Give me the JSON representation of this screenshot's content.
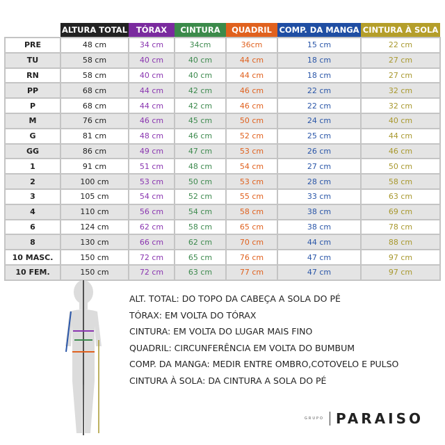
{
  "columns": [
    {
      "label": "ALTURA TOTAL",
      "color": "#222222",
      "text": "#222222"
    },
    {
      "label": "TÓRAX",
      "color": "#7a2a9e",
      "text": "#8a35b0"
    },
    {
      "label": "CINTURA",
      "color": "#3b8a4a",
      "text": "#3d8a4e"
    },
    {
      "label": "QUADRIL",
      "color": "#e0611e",
      "text": "#e0611e"
    },
    {
      "label": "COMP. DA MANGA",
      "color": "#1f4ea3",
      "text": "#2a56a8"
    },
    {
      "label": "CINTURA À SOLA",
      "color": "#b49e2a",
      "text": "#a8982e"
    }
  ],
  "rows": [
    [
      "PRE",
      "48 cm",
      "34 cm",
      "34cm",
      "36cm",
      "15 cm",
      "22 cm"
    ],
    [
      "TU",
      "58 cm",
      "40 cm",
      "40 cm",
      "44 cm",
      "18 cm",
      "27 cm"
    ],
    [
      "RN",
      "58 cm",
      "40 cm",
      "40 cm",
      "44 cm",
      "18 cm",
      "27 cm"
    ],
    [
      "PP",
      "68 cm",
      "44 cm",
      "42 cm",
      "46 cm",
      "22 cm",
      "32 cm"
    ],
    [
      "P",
      "68 cm",
      "44 cm",
      "42 cm",
      "46 cm",
      "22 cm",
      "32 cm"
    ],
    [
      "M",
      "76 cm",
      "46 cm",
      "45 cm",
      "50 cm",
      "24 cm",
      "40 cm"
    ],
    [
      "G",
      "81 cm",
      "48 cm",
      "46 cm",
      "52 cm",
      "25 cm",
      "44 cm"
    ],
    [
      "GG",
      "86 cm",
      "49 cm",
      "47 cm",
      "53 cm",
      "26 cm",
      "46 cm"
    ],
    [
      "1",
      "91 cm",
      "51 cm",
      "48 cm",
      "54 cm",
      "27 cm",
      "50 cm"
    ],
    [
      "2",
      "100 cm",
      "53 cm",
      "50 cm",
      "53 cm",
      "28 cm",
      "58 cm"
    ],
    [
      "3",
      "105 cm",
      "54 cm",
      "52 cm",
      "55 cm",
      "33 cm",
      "63 cm"
    ],
    [
      "4",
      "110 cm",
      "56 cm",
      "54 cm",
      "58 cm",
      "38 cm",
      "69 cm"
    ],
    [
      "6",
      "124 cm",
      "62 cm",
      "58 cm",
      "65 cm",
      "38 cm",
      "78 cm"
    ],
    [
      "8",
      "130 cm",
      "66 cm",
      "62 cm",
      "70 cm",
      "44 cm",
      "88 cm"
    ],
    [
      "10 MASC.",
      "150 cm",
      "72 cm",
      "65 cm",
      "76 cm",
      "47 cm",
      "97 cm"
    ],
    [
      "10 FEM.",
      "150 cm",
      "72 cm",
      "63 cm",
      "77 cm",
      "47 cm",
      "97 cm"
    ]
  ],
  "legend": [
    "ALT. TOTAL: DO TOPO DA CABEÇA A SOLA DO PÉ",
    "TÓRAX: EM VOLTA DO TÓRAX",
    "CINTURA: EM VOLTA DO LUGAR MAIS FINO",
    "QUADRIL: CIRCUNFERÊNCIA EM VOLTA DO BUMBUM",
    "COMP. DA MANGA: MEDIR ENTRE OMBRO,COTOVELO E PULSO",
    "CINTURA À SOLA: DA CINTURA A SOLA DO PÉ"
  ],
  "logo": {
    "group": "GRUPO",
    "brand": "PARAISO"
  }
}
